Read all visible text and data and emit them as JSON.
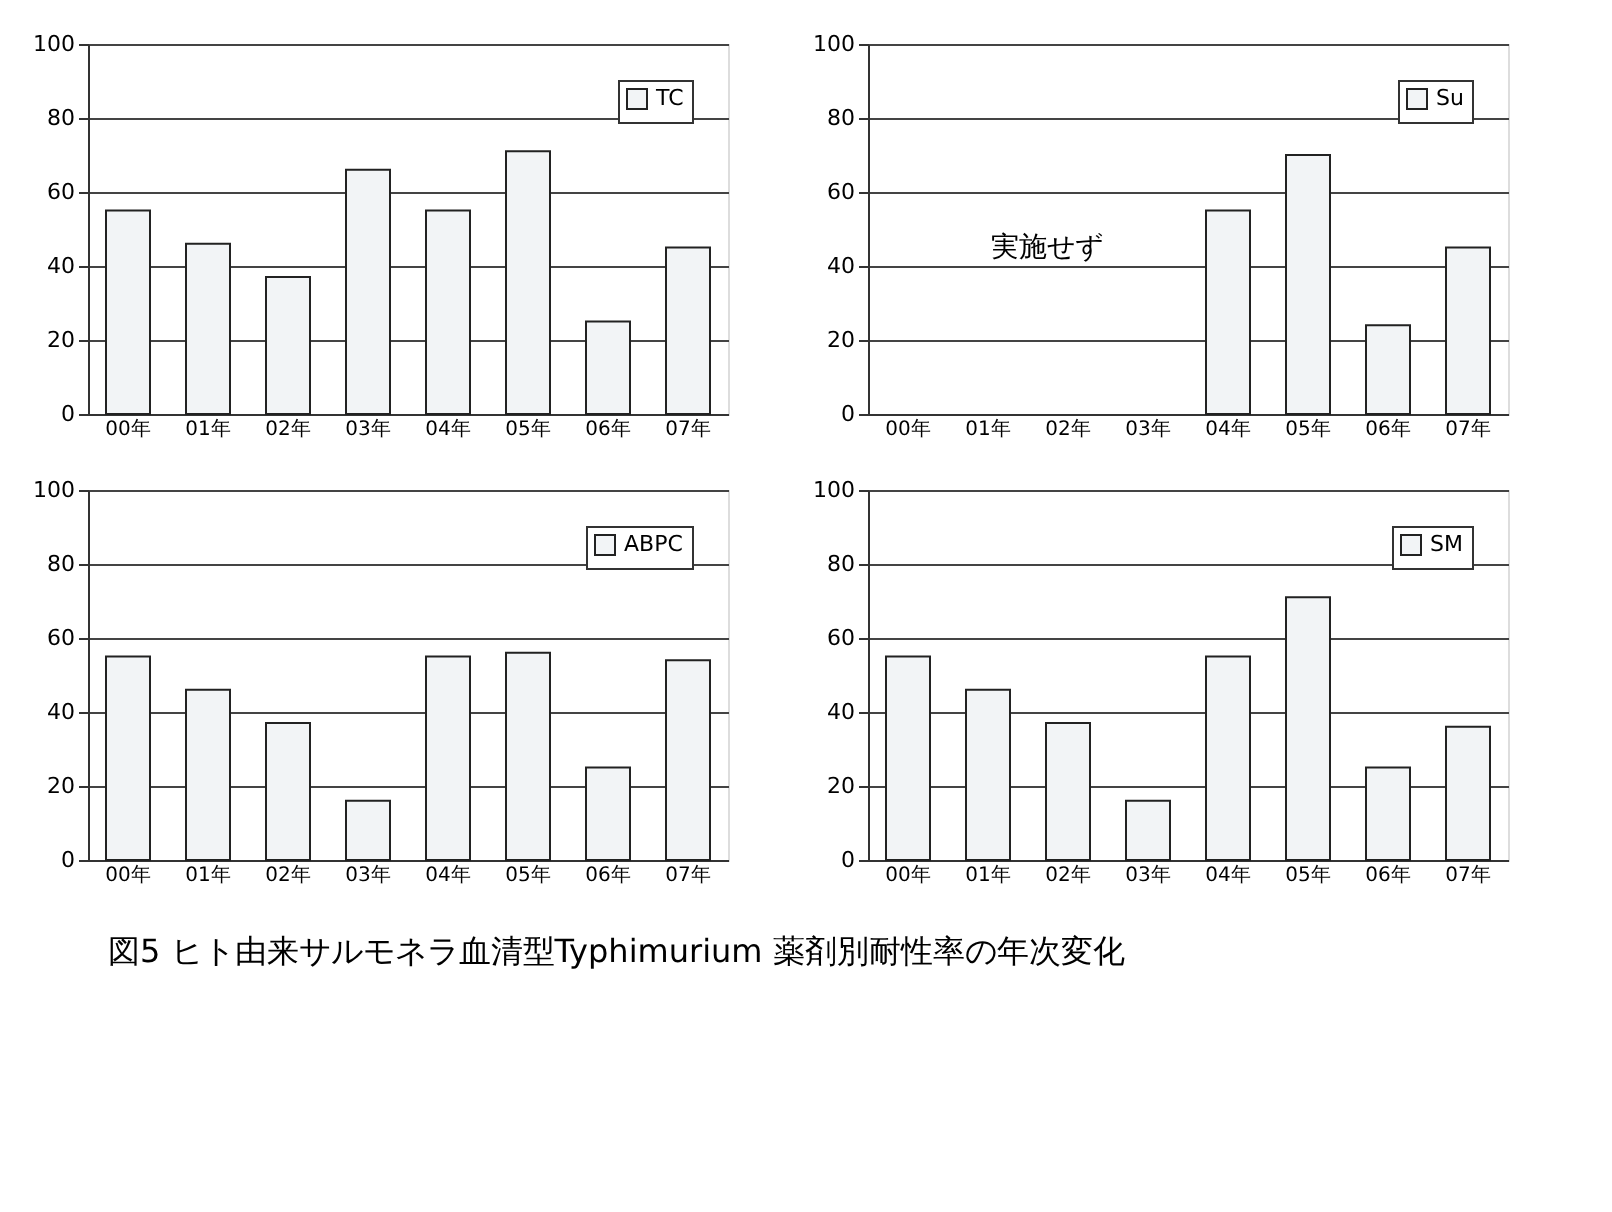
{
  "chart_data": [
    {
      "type": "bar",
      "categories": [
        "00年",
        "01年",
        "02年",
        "03年",
        "04年",
        "05年",
        "06年",
        "07年"
      ],
      "series": [
        {
          "name": "TC",
          "color": "#f2f4f6",
          "values": [
            55,
            46,
            37,
            66,
            55,
            71,
            25,
            45
          ]
        }
      ],
      "ylim": [
        0,
        100
      ],
      "yticks": [
        0,
        20,
        40,
        60,
        80,
        100
      ],
      "grid": "y",
      "legend": "top right"
    },
    {
      "type": "bar",
      "categories": [
        "00年",
        "01年",
        "02年",
        "03年",
        "04年",
        "05年",
        "06年",
        "07年"
      ],
      "series": [
        {
          "name": "Su",
          "color": "#f2f4f6",
          "values": [
            null,
            null,
            null,
            null,
            55,
            70,
            24,
            45
          ]
        }
      ],
      "ylim": [
        0,
        100
      ],
      "yticks": [
        0,
        20,
        40,
        60,
        80,
        100
      ],
      "grid": "y",
      "legend": "top right",
      "annotations": [
        "実施せず"
      ]
    },
    {
      "type": "bar",
      "categories": [
        "00年",
        "01年",
        "02年",
        "03年",
        "04年",
        "05年",
        "06年",
        "07年"
      ],
      "series": [
        {
          "name": "ABPC",
          "color": "#f2f4f6",
          "values": [
            55,
            46,
            37,
            16,
            55,
            56,
            25,
            54
          ]
        }
      ],
      "ylim": [
        0,
        100
      ],
      "yticks": [
        0,
        20,
        40,
        60,
        80,
        100
      ],
      "grid": "y",
      "legend": "top right"
    },
    {
      "type": "bar",
      "categories": [
        "00年",
        "01年",
        "02年",
        "03年",
        "04年",
        "05年",
        "06年",
        "07年"
      ],
      "series": [
        {
          "name": "SM",
          "color": "#f2f4f6",
          "values": [
            55,
            46,
            37,
            16,
            55,
            71,
            25,
            36
          ]
        }
      ],
      "ylim": [
        0,
        100
      ],
      "yticks": [
        0,
        20,
        40,
        60,
        80,
        100
      ],
      "grid": "y",
      "legend": "top right",
      "annotations": [
        "図5 ヒト由来サルモネラ血清型Typhimurium 薬剤別耐性率の年次変化"
      ]
    }
  ]
}
